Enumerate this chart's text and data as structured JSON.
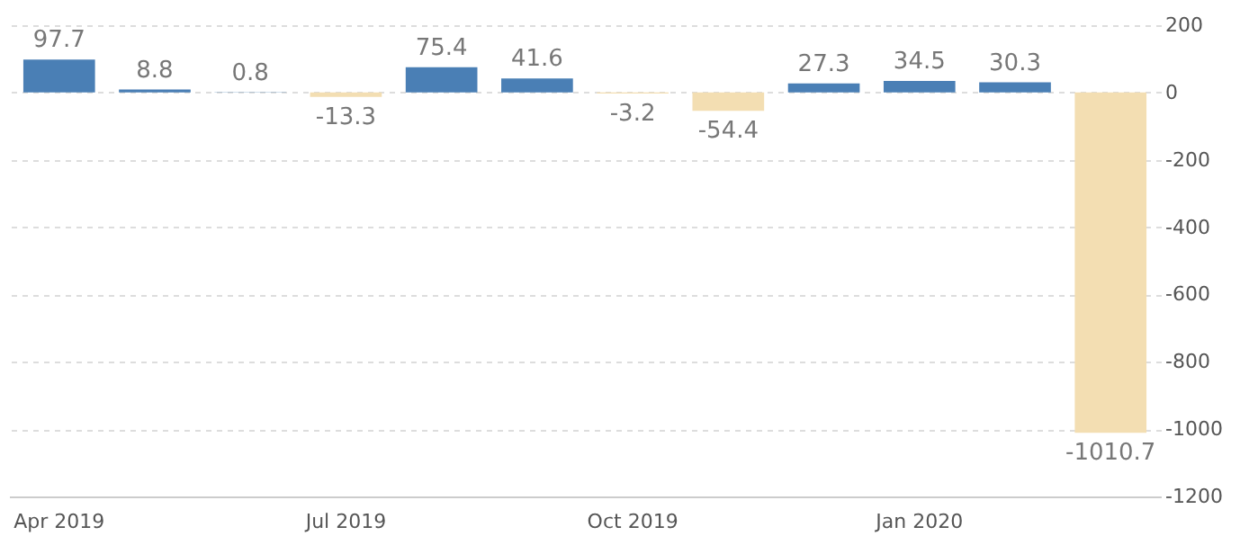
{
  "chart_data": {
    "type": "bar",
    "categories": [
      "Apr 2019",
      null,
      null,
      "Jul 2019",
      null,
      null,
      "Oct 2019",
      null,
      null,
      "Jan 2020",
      null,
      null
    ],
    "values": [
      97.7,
      8.8,
      0.8,
      -13.3,
      75.4,
      41.6,
      -3.2,
      -54.4,
      27.3,
      34.5,
      30.3,
      -1010.7
    ],
    "colors": [
      "#4a7fb5",
      "#4a7fb5",
      "#4a7fb5",
      "#f3deb2",
      "#4a7fb5",
      "#4a7fb5",
      "#f3deb2",
      "#f3deb2",
      "#4a7fb5",
      "#4a7fb5",
      "#4a7fb5",
      "#f3deb2"
    ],
    "ylim": [
      -1200,
      200
    ],
    "yticks": [
      -1200,
      -1000,
      -800,
      -600,
      -400,
      -200,
      0,
      200
    ],
    "grid": "y",
    "data_labels": true
  }
}
